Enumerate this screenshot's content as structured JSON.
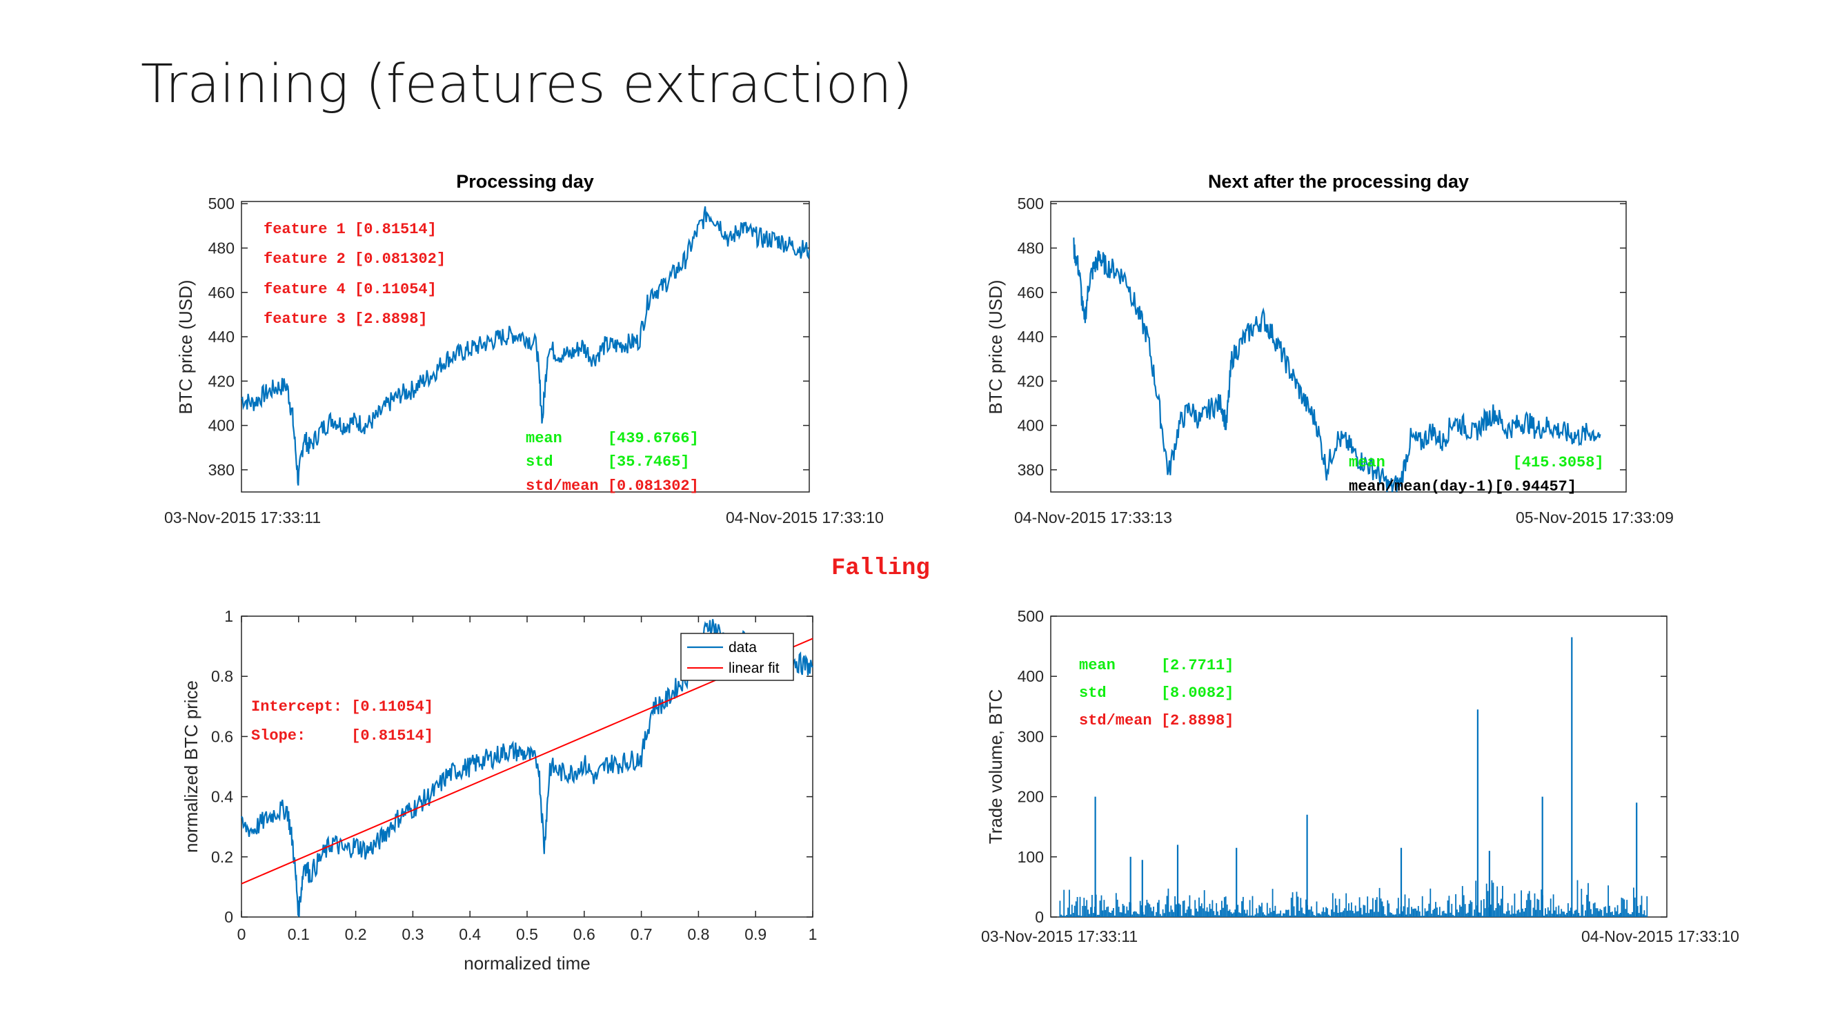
{
  "slide": {
    "title": "Training (features extraction)",
    "trend_label": "Falling"
  },
  "colors": {
    "series": "#0072bd",
    "fit": "#ff0000",
    "red_text": "#ee1c1c",
    "green_text": "#10ee10",
    "black_text": "#000000"
  },
  "chart_data": [
    {
      "id": "processing-day",
      "type": "line",
      "title": "Processing day",
      "xlabel": "",
      "ylabel": "BTC price (USD)",
      "ylim": [
        370,
        501
      ],
      "yticks": [
        380,
        400,
        420,
        440,
        460,
        480,
        500
      ],
      "xtick_labels": [
        "03-Nov-2015 17:33:11",
        "04-Nov-2015 17:33:10"
      ],
      "x": [
        0,
        0.02,
        0.04,
        0.06,
        0.08,
        0.09,
        0.1,
        0.11,
        0.12,
        0.14,
        0.16,
        0.18,
        0.2,
        0.22,
        0.24,
        0.26,
        0.28,
        0.3,
        0.32,
        0.34,
        0.36,
        0.38,
        0.4,
        0.42,
        0.44,
        0.46,
        0.48,
        0.5,
        0.52,
        0.53,
        0.54,
        0.56,
        0.58,
        0.6,
        0.62,
        0.64,
        0.66,
        0.68,
        0.7,
        0.72,
        0.74,
        0.76,
        0.78,
        0.8,
        0.82,
        0.84,
        0.86,
        0.88,
        0.9,
        0.92,
        0.94,
        0.96,
        0.98,
        1.0
      ],
      "y": [
        412,
        410,
        414,
        417,
        418,
        404,
        375,
        395,
        390,
        398,
        403,
        400,
        402,
        400,
        404,
        410,
        414,
        416,
        420,
        424,
        430,
        432,
        434,
        436,
        438,
        440,
        441,
        440,
        436,
        402,
        435,
        432,
        432,
        436,
        430,
        436,
        436,
        437,
        438,
        460,
        462,
        468,
        474,
        486,
        496,
        492,
        483,
        490,
        486,
        484,
        484,
        482,
        480,
        479
      ],
      "annotations": [
        {
          "text": "feature 1 [0.81514]",
          "color": "red"
        },
        {
          "text": "feature 2 [0.081302]",
          "color": "red"
        },
        {
          "text": "feature 4 [0.11054]",
          "color": "red"
        },
        {
          "text": "feature 3 [2.8898]",
          "color": "red"
        },
        {
          "text": "mean     [439.6766]",
          "color": "green"
        },
        {
          "text": "std      [35.7465]",
          "color": "green"
        },
        {
          "text": "std/mean [0.081302]",
          "color": "red"
        }
      ]
    },
    {
      "id": "next-day",
      "type": "line",
      "title": "Next after the processing day",
      "xlabel": "",
      "ylabel": "BTC price (USD)",
      "ylim": [
        370,
        501
      ],
      "yticks": [
        380,
        400,
        420,
        440,
        460,
        480,
        500
      ],
      "xtick_labels": [
        "04-Nov-2015 17:33:13",
        "05-Nov-2015 17:33:09"
      ],
      "x": [
        0,
        0.01,
        0.02,
        0.03,
        0.04,
        0.05,
        0.06,
        0.08,
        0.1,
        0.12,
        0.14,
        0.16,
        0.18,
        0.2,
        0.22,
        0.24,
        0.26,
        0.28,
        0.29,
        0.3,
        0.32,
        0.34,
        0.36,
        0.38,
        0.4,
        0.42,
        0.44,
        0.46,
        0.48,
        0.5,
        0.52,
        0.54,
        0.56,
        0.58,
        0.6,
        0.62,
        0.64,
        0.66,
        0.68,
        0.7,
        0.72,
        0.74,
        0.76,
        0.78,
        0.8,
        0.82,
        0.84,
        0.86,
        0.88,
        0.9,
        0.92,
        0.94,
        0.96,
        0.98,
        1.0
      ],
      "y": [
        480,
        470,
        446,
        466,
        472,
        476,
        472,
        470,
        466,
        452,
        440,
        412,
        378,
        400,
        408,
        402,
        408,
        410,
        400,
        430,
        438,
        444,
        448,
        440,
        430,
        420,
        410,
        402,
        380,
        394,
        392,
        385,
        382,
        378,
        372,
        374,
        394,
        392,
        398,
        392,
        402,
        400,
        396,
        402,
        406,
        398,
        400,
        402,
        398,
        400,
        398,
        396,
        395,
        397,
        396
      ],
      "annotations": [
        {
          "text": "mean              [415.3058]",
          "color": "green"
        },
        {
          "text": "mean/mean(day-1)[0.94457]",
          "color": "black"
        }
      ]
    },
    {
      "id": "normalized-fit",
      "type": "line",
      "title": "",
      "xlabel": "normalized time",
      "ylabel": "normalized BTC price",
      "xlim": [
        0,
        1
      ],
      "ylim": [
        0,
        1
      ],
      "xticks": [
        "0",
        "0.1",
        "0.2",
        "0.3",
        "0.4",
        "0.5",
        "0.6",
        "0.7",
        "0.8",
        "0.9",
        "1"
      ],
      "yticks": [
        "0",
        "0.2",
        "0.4",
        "0.6",
        "0.8",
        "1"
      ],
      "series": [
        {
          "name": "data",
          "x": [
            0,
            0.02,
            0.04,
            0.06,
            0.08,
            0.09,
            0.1,
            0.11,
            0.12,
            0.14,
            0.16,
            0.18,
            0.2,
            0.22,
            0.24,
            0.26,
            0.28,
            0.3,
            0.32,
            0.34,
            0.36,
            0.38,
            0.4,
            0.42,
            0.44,
            0.46,
            0.48,
            0.5,
            0.52,
            0.53,
            0.54,
            0.56,
            0.58,
            0.6,
            0.62,
            0.64,
            0.66,
            0.68,
            0.7,
            0.72,
            0.74,
            0.76,
            0.78,
            0.8,
            0.82,
            0.84,
            0.86,
            0.88,
            0.9,
            0.92,
            0.94,
            0.96,
            0.98,
            1.0
          ],
          "y": [
            0.3,
            0.29,
            0.32,
            0.35,
            0.36,
            0.24,
            0.02,
            0.18,
            0.14,
            0.2,
            0.25,
            0.22,
            0.24,
            0.22,
            0.25,
            0.3,
            0.34,
            0.36,
            0.39,
            0.42,
            0.47,
            0.49,
            0.5,
            0.52,
            0.53,
            0.55,
            0.55,
            0.54,
            0.51,
            0.23,
            0.5,
            0.48,
            0.48,
            0.51,
            0.46,
            0.51,
            0.51,
            0.52,
            0.53,
            0.7,
            0.71,
            0.76,
            0.8,
            0.9,
            0.98,
            0.94,
            0.87,
            0.92,
            0.89,
            0.87,
            0.87,
            0.86,
            0.84,
            0.83
          ]
        },
        {
          "name": "linear fit",
          "x": [
            0,
            1
          ],
          "y": [
            0.11054,
            0.92568
          ]
        }
      ],
      "legend_position": "top-right",
      "annotations": [
        {
          "text": "Intercept: [0.11054]",
          "color": "red"
        },
        {
          "text": "Slope:     [0.81514]",
          "color": "red"
        }
      ]
    },
    {
      "id": "trade-volume",
      "type": "bar",
      "title": "",
      "xlabel": "",
      "ylabel": "Trade volume, BTC",
      "ylim": [
        0,
        500
      ],
      "yticks": [
        0,
        100,
        200,
        300,
        400,
        500
      ],
      "xtick_labels": [
        "03-Nov-2015 17:33:11",
        "04-Nov-2015 17:33:10"
      ],
      "spikes": [
        {
          "x": 0.06,
          "value": 200
        },
        {
          "x": 0.12,
          "value": 100
        },
        {
          "x": 0.14,
          "value": 95
        },
        {
          "x": 0.2,
          "value": 120
        },
        {
          "x": 0.3,
          "value": 115
        },
        {
          "x": 0.42,
          "value": 170
        },
        {
          "x": 0.58,
          "value": 115
        },
        {
          "x": 0.71,
          "value": 345
        },
        {
          "x": 0.73,
          "value": 110
        },
        {
          "x": 0.82,
          "value": 200
        },
        {
          "x": 0.87,
          "value": 465
        },
        {
          "x": 0.98,
          "value": 190
        }
      ],
      "baseline_range": [
        0,
        50
      ],
      "annotations": [
        {
          "text": "mean     [2.7711]",
          "color": "green"
        },
        {
          "text": "std      [8.0082]",
          "color": "green"
        },
        {
          "text": "std/mean [2.8898]",
          "color": "red"
        }
      ]
    }
  ]
}
